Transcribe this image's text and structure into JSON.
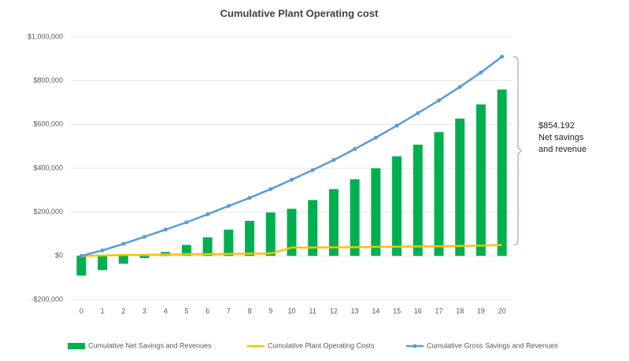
{
  "chart_data": {
    "type": "bar_line",
    "title": "Cumulative Plant Operating cost",
    "categories": [
      "0",
      "1",
      "2",
      "3",
      "4",
      "5",
      "6",
      "7",
      "8",
      "9",
      "10",
      "11",
      "12",
      "13",
      "14",
      "15",
      "16",
      "17",
      "18",
      "19",
      "20"
    ],
    "series": [
      {
        "name": "Cumulative Net Savings and Revenues",
        "type": "bar",
        "color": "#00b050",
        "values": [
          -90000,
          -65000,
          -36000,
          -10000,
          18000,
          50000,
          85000,
          120000,
          160000,
          198000,
          215000,
          255000,
          305000,
          350000,
          400000,
          455000,
          508000,
          565000,
          627000,
          692000,
          760000
        ]
      },
      {
        "name": "Cumulative Plant Operating Costs",
        "type": "line",
        "color": "#ffc000",
        "values": [
          0,
          2000,
          4000,
          5000,
          6000,
          7000,
          8000,
          9000,
          10000,
          11000,
          38000,
          38000,
          39000,
          40000,
          41000,
          42000,
          43000,
          44000,
          45000,
          47000,
          50000
        ]
      },
      {
        "name": "Cumulative Gross Savings and Revenues",
        "type": "line",
        "color": "#5b9bd5",
        "markers": true,
        "values": [
          0,
          25000,
          55000,
          87000,
          120000,
          153000,
          190000,
          228000,
          265000,
          305000,
          348000,
          392000,
          438000,
          488000,
          540000,
          595000,
          652000,
          710000,
          772000,
          838000,
          910000
        ]
      }
    ],
    "ylim": [
      -200000,
      1000000
    ],
    "yticks": [
      {
        "value": -200000,
        "label": "-$200,000"
      },
      {
        "value": 0,
        "label": "$0"
      },
      {
        "value": 200000,
        "label": "$200,000"
      },
      {
        "value": 400000,
        "label": "$400,000"
      },
      {
        "value": 600000,
        "label": "$600,000"
      },
      {
        "value": 800000,
        "label": "$800,000"
      },
      {
        "value": 1000000,
        "label": "$1,000,000"
      }
    ],
    "grid": true,
    "legend": "bottom",
    "annotation": [
      "$854.192",
      "Net savings",
      "and revenue"
    ]
  }
}
